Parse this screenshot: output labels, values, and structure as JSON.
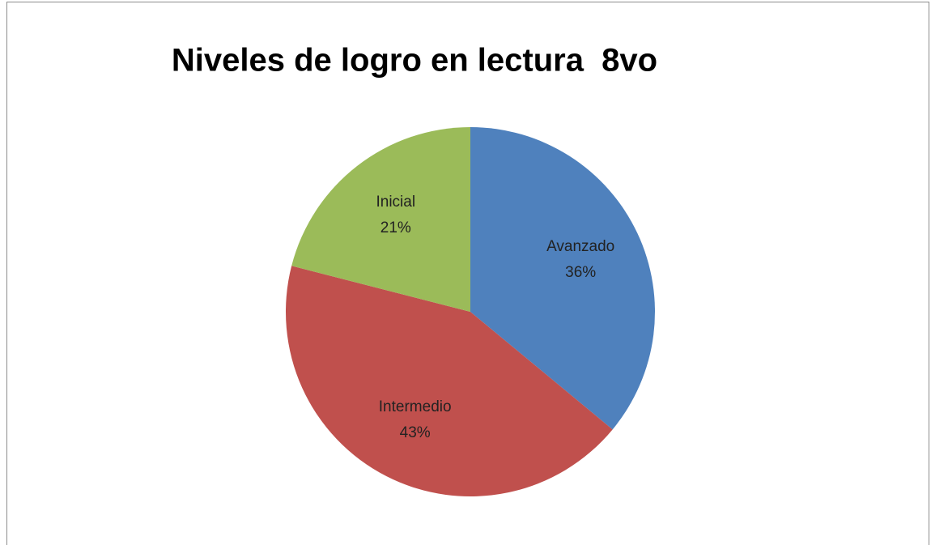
{
  "chart_data": {
    "type": "pie",
    "title": "Niveles de logro en lectura  8vo",
    "categories": [
      "Avanzado",
      "Intermedio",
      "Inicial"
    ],
    "values": [
      36,
      43,
      21
    ],
    "value_labels": [
      "36%",
      "43%",
      "21%"
    ],
    "colors": [
      "#4f81bd",
      "#c0504d",
      "#9bbb59"
    ]
  }
}
